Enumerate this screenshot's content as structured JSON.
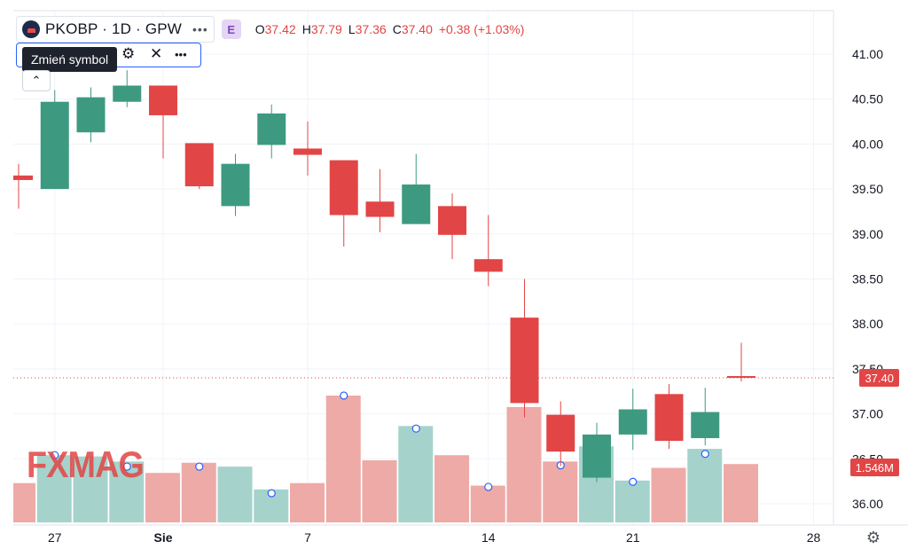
{
  "header": {
    "symbol_label": "PKOBP · 1D · GPW",
    "more_icon": "more-dots-icon",
    "badge": "E",
    "ohlc": {
      "o_label": "O",
      "o_value": "37.42",
      "h_label": "H",
      "h_value": "37.79",
      "l_label": "L",
      "l_value": "37.36",
      "c_label": "C",
      "c_value": "37.40",
      "change": "+0.38 (+1.03%)"
    }
  },
  "toolbar": {
    "tooltip": "Zmień symbol",
    "close_icon": "close-icon",
    "settings_icon": "gear-icon",
    "more_icon": "more-dots-icon",
    "collapse_icon": "chevron-up-icon"
  },
  "watermark": "FXMAG",
  "price_tag": "37.40",
  "volume_tag": "1.546M",
  "colors": {
    "up": "#3d9a80",
    "down": "#e24545",
    "vol_up": "#a5d3cc",
    "vol_down": "#eeaaa7"
  },
  "chart_data": {
    "type": "candlestick",
    "y_ticks": [
      "41.00",
      "40.50",
      "40.00",
      "39.50",
      "39.00",
      "38.50",
      "38.00",
      "37.50",
      "37.00",
      "36.50",
      "36.00"
    ],
    "ylim": [
      35.75,
      41.25
    ],
    "x_ticks": [
      {
        "label": "27",
        "index": 1
      },
      {
        "label": "Sie",
        "index": 4
      },
      {
        "label": "7",
        "index": 8
      },
      {
        "label": "14",
        "index": 13
      },
      {
        "label": "21",
        "index": 17
      },
      {
        "label": "28",
        "index": 22
      }
    ],
    "candles": [
      {
        "o": 39.65,
        "h": 39.78,
        "l": 39.28,
        "c": 39.6,
        "vol_rel": 0.31
      },
      {
        "o": 39.5,
        "h": 40.6,
        "l": 39.5,
        "c": 40.47,
        "vol_rel": 0.53
      },
      {
        "o": 40.13,
        "h": 40.63,
        "l": 40.02,
        "c": 40.52,
        "vol_rel": 0.52
      },
      {
        "o": 40.47,
        "h": 40.82,
        "l": 40.41,
        "c": 40.65,
        "vol_rel": 0.48
      },
      {
        "o": 40.65,
        "h": 40.65,
        "l": 39.84,
        "c": 40.32,
        "vol_rel": 0.39
      },
      {
        "o": 40.01,
        "h": 40.01,
        "l": 39.5,
        "c": 39.53,
        "vol_rel": 0.47
      },
      {
        "o": 39.31,
        "h": 39.89,
        "l": 39.2,
        "c": 39.78,
        "vol_rel": 0.44
      },
      {
        "o": 39.99,
        "h": 40.44,
        "l": 39.84,
        "c": 40.34,
        "vol_rel": 0.26
      },
      {
        "o": 39.95,
        "h": 40.25,
        "l": 39.65,
        "c": 39.88,
        "vol_rel": 0.31
      },
      {
        "o": 39.82,
        "h": 39.82,
        "l": 38.86,
        "c": 39.21,
        "vol_rel": 1.0
      },
      {
        "o": 39.36,
        "h": 39.72,
        "l": 39.02,
        "c": 39.19,
        "vol_rel": 0.49
      },
      {
        "o": 39.11,
        "h": 39.89,
        "l": 39.11,
        "c": 39.55,
        "vol_rel": 0.76
      },
      {
        "o": 39.31,
        "h": 39.45,
        "l": 38.72,
        "c": 38.99,
        "vol_rel": 0.53
      },
      {
        "o": 38.72,
        "h": 39.21,
        "l": 38.42,
        "c": 38.58,
        "vol_rel": 0.29
      },
      {
        "o": 38.07,
        "h": 38.5,
        "l": 36.96,
        "c": 37.12,
        "vol_rel": 0.91
      },
      {
        "o": 36.99,
        "h": 37.14,
        "l": 36.42,
        "c": 36.58,
        "vol_rel": 0.48
      },
      {
        "o": 36.29,
        "h": 36.9,
        "l": 36.24,
        "c": 36.77,
        "vol_rel": 0.6
      },
      {
        "o": 36.77,
        "h": 37.28,
        "l": 36.6,
        "c": 37.05,
        "vol_rel": 0.33
      },
      {
        "o": 37.22,
        "h": 37.33,
        "l": 36.61,
        "c": 36.7,
        "vol_rel": 0.43
      },
      {
        "o": 36.73,
        "h": 37.29,
        "l": 36.65,
        "c": 37.02,
        "vol_rel": 0.58
      },
      {
        "o": 37.42,
        "h": 37.79,
        "l": 37.36,
        "c": 37.4,
        "vol_rel": 0.46
      }
    ],
    "last_price": 37.4
  }
}
